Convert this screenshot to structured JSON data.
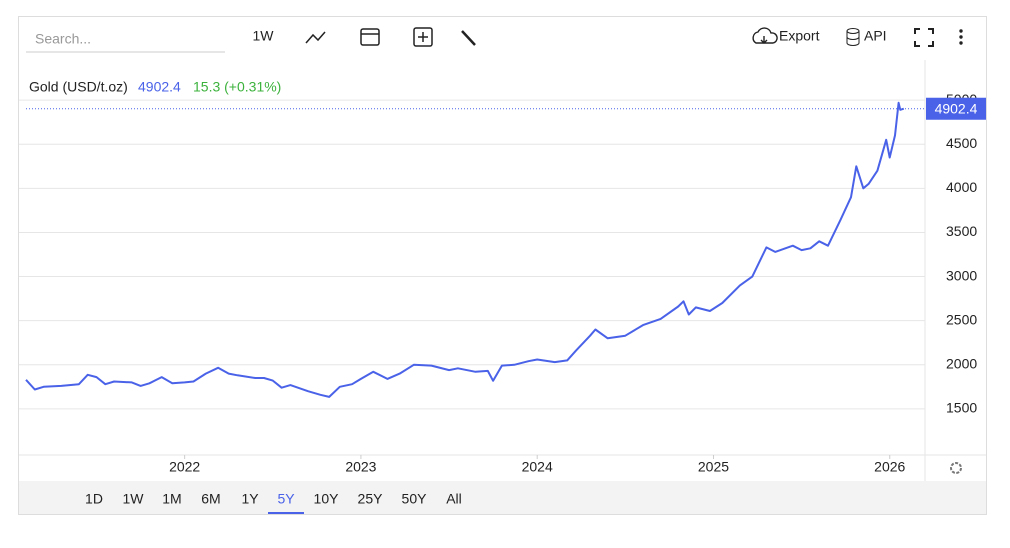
{
  "toolbar": {
    "search_placeholder": "Search...",
    "interval": "1W",
    "export": "Export",
    "api": "API"
  },
  "range_buttons": [
    "1D",
    "1W",
    "1M",
    "6M",
    "1Y",
    "5Y",
    "10Y",
    "25Y",
    "50Y",
    "All"
  ],
  "active_range": 5,
  "chart_data": {
    "type": "line",
    "title": "Gold (USD/t.oz)",
    "last_value": 4902.4,
    "change": "15.3 (+0.31%)",
    "xlim": [
      2021.1,
      2026.2
    ],
    "xticks": [
      2022,
      2023,
      2024,
      2025,
      2026
    ],
    "ylim": [
      977,
      5455
    ],
    "yticks": [
      1500,
      2000,
      2500,
      3000,
      3500,
      4000,
      4500,
      5000
    ],
    "grid": true,
    "series": [
      {
        "name": "Gold (USD/t.oz)",
        "color": "#4a62e8",
        "x": [
          2021.1,
          2021.15,
          2021.2,
          2021.3,
          2021.4,
          2021.45,
          2021.5,
          2021.55,
          2021.6,
          2021.7,
          2021.75,
          2021.8,
          2021.87,
          2021.93,
          2022.0,
          2022.05,
          2022.12,
          2022.19,
          2022.25,
          2022.3,
          2022.4,
          2022.45,
          2022.5,
          2022.55,
          2022.6,
          2022.7,
          2022.77,
          2022.82,
          2022.88,
          2022.95,
          2023.0,
          2023.07,
          2023.15,
          2023.22,
          2023.3,
          2023.4,
          2023.5,
          2023.55,
          2023.65,
          2023.72,
          2023.75,
          2023.8,
          2023.87,
          2023.95,
          2024.0,
          2024.1,
          2024.17,
          2024.22,
          2024.3,
          2024.33,
          2024.4,
          2024.5,
          2024.6,
          2024.7,
          2024.8,
          2024.83,
          2024.86,
          2024.9,
          2024.98,
          2025.05,
          2025.15,
          2025.22,
          2025.3,
          2025.35,
          2025.45,
          2025.5,
          2025.55,
          2025.6,
          2025.65,
          2025.72,
          2025.78,
          2025.81,
          2025.85,
          2025.88,
          2025.93,
          2025.98,
          2026.0,
          2026.03,
          2026.05,
          2026.06,
          2026.08
        ],
        "values": [
          1830,
          1720,
          1750,
          1760,
          1780,
          1886,
          1860,
          1780,
          1810,
          1800,
          1760,
          1790,
          1860,
          1790,
          1800,
          1810,
          1900,
          1966,
          1900,
          1880,
          1850,
          1850,
          1820,
          1740,
          1770,
          1700,
          1660,
          1636,
          1750,
          1780,
          1840,
          1920,
          1840,
          1900,
          2000,
          1990,
          1940,
          1960,
          1920,
          1930,
          1818,
          1990,
          2000,
          2040,
          2060,
          2030,
          2050,
          2160,
          2330,
          2400,
          2300,
          2330,
          2450,
          2520,
          2660,
          2720,
          2570,
          2650,
          2610,
          2700,
          2900,
          3000,
          3330,
          3280,
          3350,
          3300,
          3320,
          3400,
          3350,
          3640,
          3900,
          4250,
          4000,
          4050,
          4200,
          4550,
          4350,
          4600,
          4970,
          4890,
          4902.4
        ]
      }
    ]
  }
}
